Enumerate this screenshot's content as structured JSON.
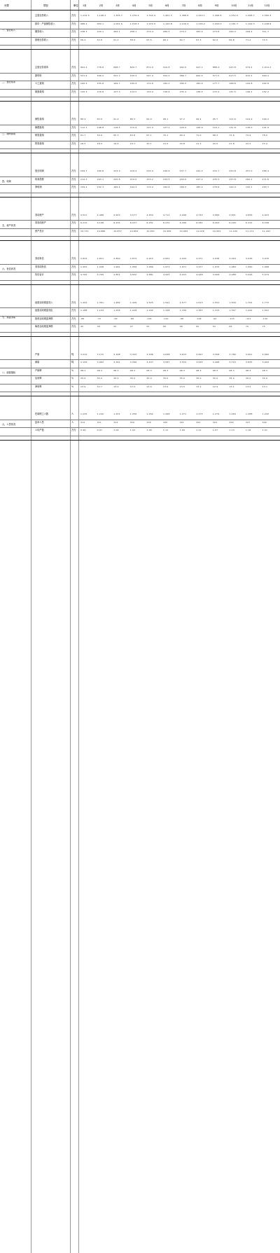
{
  "header": {
    "category": "分类",
    "item": "项目",
    "unit": "单位",
    "periods": [
      "1月",
      "2月",
      "3月",
      "4月",
      "5月",
      "6月",
      "7月",
      "8月",
      "9月",
      "10月",
      "11月",
      "12月"
    ]
  },
  "sections": [
    {
      "title": "一、营业收入",
      "rows": [
        {
          "item": "主营业务收入",
          "unit": "万元",
          "values": [
            "1,234.5",
            "1,198.2",
            "1,305.7",
            "1,276.4",
            "1,342.9",
            "1,401.3",
            "1,388.6",
            "1,420.1",
            "1,366.8",
            "1,452.0",
            "1,498.7",
            "1,560.3"
          ]
        },
        {
          "item": "其中：产品销售收入",
          "unit": "万元",
          "values": [
            "986.2",
            "954.1",
            "1,041.6",
            "1,018.3",
            "1,072.5",
            "1,120.8",
            "1,109.4",
            "1,136.2",
            "1,093.0",
            "1,161.7",
            "1,199.3",
            "1,248.6"
          ]
        },
        {
          "item": "服务收入",
          "unit": "万元",
          "values": [
            "248.3",
            "244.1",
            "264.1",
            "258.1",
            "270.4",
            "280.5",
            "279.2",
            "283.9",
            "273.8",
            "290.3",
            "299.4",
            "311.7"
          ]
        },
        {
          "item": "其他业务收入",
          "unit": "万元",
          "values": [
            "56.4",
            "52.8",
            "61.2",
            "58.9",
            "63.5",
            "66.1",
            "64.7",
            "67.3",
            "62.9",
            "69.8",
            "71.2",
            "74.5"
          ]
        }
      ]
    },
    {
      "title": "二、营业成本",
      "rows": [
        {
          "item": "主营业务成本",
          "unit": "万元",
          "values": [
            "802.4",
            "778.8",
            "848.7",
            "829.7",
            "872.9",
            "910.8",
            "902.6",
            "923.1",
            "888.4",
            "943.8",
            "974.2",
            "1,014.2"
          ]
        },
        {
          "item": "原材料",
          "unit": "万元",
          "values": [
            "521.6",
            "506.2",
            "551.7",
            "539.3",
            "567.4",
            "592.0",
            "586.7",
            "600.0",
            "577.5",
            "613.5",
            "633.2",
            "659.2"
          ]
        },
        {
          "item": "人工费用",
          "unit": "万元",
          "values": [
            "160.5",
            "155.8",
            "169.7",
            "165.9",
            "174.6",
            "182.2",
            "180.5",
            "184.6",
            "177.7",
            "188.8",
            "194.8",
            "202.8"
          ]
        },
        {
          "item": "制造费用",
          "unit": "万元",
          "values": [
            "120.3",
            "116.8",
            "127.3",
            "124.5",
            "130.9",
            "136.6",
            "135.4",
            "138.5",
            "133.2",
            "141.5",
            "146.2",
            "152.2"
          ]
        }
      ]
    },
    {
      "title": "三、期间费用",
      "rows": [
        {
          "item": "销售费用",
          "unit": "万元",
          "values": [
            "86.4",
            "83.9",
            "91.4",
            "89.3",
            "94.0",
            "98.1",
            "97.2",
            "99.4",
            "95.7",
            "101.6",
            "104.9",
            "109.2"
          ]
        },
        {
          "item": "管理费用",
          "unit": "万元",
          "values": [
            "112.1",
            "108.8",
            "118.5",
            "115.9",
            "121.9",
            "127.2",
            "126.0",
            "128.9",
            "124.1",
            "131.8",
            "136.0",
            "141.6"
          ]
        },
        {
          "item": "研发费用",
          "unit": "万元",
          "values": [
            "61.7",
            "59.9",
            "65.3",
            "63.8",
            "67.1",
            "70.1",
            "69.4",
            "71.0",
            "68.3",
            "72.6",
            "74.9",
            "78.0"
          ]
        },
        {
          "item": "财务费用",
          "unit": "万元",
          "values": [
            "18.5",
            "18.0",
            "19.6",
            "19.1",
            "20.1",
            "21.0",
            "20.8",
            "21.3",
            "20.5",
            "21.8",
            "22.5",
            "23.4"
          ]
        }
      ]
    },
    {
      "title": "四、利润",
      "rows": [
        {
          "item": "营业利润",
          "unit": "万元",
          "values": [
            "209.7",
            "200.8",
            "223.0",
            "216.4",
            "230.4",
            "240.6",
            "237.7",
            "244.3",
            "232.7",
            "250.8",
            "257.0",
            "268.4"
          ]
        },
        {
          "item": "利润总额",
          "unit": "万元",
          "values": [
            "212.3",
            "203.1",
            "225.8",
            "219.0",
            "233.2",
            "243.5",
            "240.6",
            "247.2",
            "235.5",
            "253.8",
            "260.1",
            "271.6"
          ]
        },
        {
          "item": "净利润",
          "unit": "万元",
          "values": [
            "159.2",
            "152.3",
            "169.4",
            "164.3",
            "174.9",
            "182.6",
            "180.5",
            "185.4",
            "176.6",
            "190.4",
            "195.1",
            "203.7"
          ]
        }
      ]
    },
    {
      "title": "五、资产状况",
      "rows": [
        {
          "item": "流动资产",
          "unit": "万元",
          "values": [
            "4,521",
            "4,488",
            "4,603",
            "4,577",
            "4,650",
            "4,712",
            "4,698",
            "4,745",
            "4,689",
            "4,801",
            "4,856",
            "4,923"
          ]
        },
        {
          "item": "非流动资产",
          "unit": "万元",
          "values": [
            "6,210",
            "6,198",
            "6,234",
            "6,227",
            "6,251",
            "6,270",
            "6,266",
            "6,281",
            "6,263",
            "6,299",
            "6,315",
            "6,338"
          ]
        },
        {
          "item": "资产总计",
          "unit": "万元",
          "values": [
            "10,731",
            "10,686",
            "10,837",
            "10,804",
            "10,901",
            "10,982",
            "10,964",
            "11,026",
            "10,952",
            "11,100",
            "11,171",
            "11,261"
          ]
        }
      ]
    },
    {
      "title": "六、负债状况",
      "rows": [
        {
          "item": "流动负债",
          "unit": "万元",
          "values": [
            "2,843",
            "2,821",
            "2,890",
            "2,874",
            "2,915",
            "2,952",
            "2,944",
            "2,971",
            "2,938",
            "3,004",
            "3,036",
            "3,076"
          ]
        },
        {
          "item": "非流动负债",
          "unit": "万元",
          "values": [
            "1,952",
            "1,948",
            "1,961",
            "1,958",
            "1,966",
            "1,973",
            "1,971",
            "1,977",
            "1,970",
            "1,984",
            "1,990",
            "1,998"
          ]
        },
        {
          "item": "负债合计",
          "unit": "万元",
          "values": [
            "4,795",
            "4,769",
            "4,851",
            "4,832",
            "4,881",
            "4,925",
            "4,915",
            "4,948",
            "4,908",
            "4,988",
            "5,026",
            "5,074"
          ]
        }
      ]
    },
    {
      "title": "七、现金流量",
      "rows": [
        {
          "item": "经营活动现金流入",
          "unit": "万元",
          "values": [
            "1,402",
            "1,361",
            "1,482",
            "1,449",
            "1,525",
            "1,591",
            "1,577",
            "1,613",
            "1,552",
            "1,649",
            "1,702",
            "1,772"
          ]
        },
        {
          "item": "经营活动现金流出",
          "unit": "万元",
          "values": [
            "1,188",
            "1,154",
            "1,256",
            "1,228",
            "1,292",
            "1,348",
            "1,336",
            "1,367",
            "1,315",
            "1,397",
            "1,442",
            "1,501"
          ]
        },
        {
          "item": "投资活动现金净额",
          "unit": "万元",
          "values": [
            "-86",
            "-72",
            "-95",
            "-80",
            "-101",
            "-110",
            "-98",
            "-104",
            "-92",
            "-115",
            "-121",
            "-130"
          ]
        },
        {
          "item": "筹资活动现金净额",
          "unit": "万元",
          "values": [
            "45",
            "38",
            "52",
            "47",
            "55",
            "60",
            "58",
            "62",
            "54",
            "66",
            "70",
            "75"
          ]
        }
      ]
    },
    {
      "title": "八、经营指标",
      "rows": [
        {
          "item": "产量",
          "unit": "吨",
          "values": [
            "3,210",
            "3,115",
            "3,398",
            "3,322",
            "3,496",
            "3,648",
            "3,615",
            "3,697",
            "3,558",
            "3,780",
            "3,901",
            "4,062"
          ]
        },
        {
          "item": "销量",
          "unit": "吨",
          "values": [
            "3,156",
            "3,062",
            "3,341",
            "3,266",
            "3,437",
            "3,587",
            "3,554",
            "3,635",
            "3,498",
            "3,716",
            "3,835",
            "3,993"
          ]
        },
        {
          "item": "产销率",
          "unit": "%",
          "values": [
            "98.3",
            "98.3",
            "98.3",
            "98.3",
            "98.3",
            "98.3",
            "98.3",
            "98.3",
            "98.3",
            "98.3",
            "98.3",
            "98.3"
          ]
        },
        {
          "item": "毛利率",
          "unit": "%",
          "values": [
            "35.0",
            "35.0",
            "35.0",
            "35.0",
            "35.0",
            "35.0",
            "35.0",
            "35.0",
            "35.0",
            "35.0",
            "35.0",
            "35.0"
          ]
        },
        {
          "item": "净利率",
          "unit": "%",
          "values": [
            "12.9",
            "12.7",
            "13.0",
            "12.9",
            "13.0",
            "13.0",
            "13.0",
            "13.1",
            "12.9",
            "13.1",
            "13.0",
            "13.1"
          ]
        }
      ]
    },
    {
      "title": "九、人员情况",
      "rows": [
        {
          "item": "在岗职工人数",
          "unit": "人",
          "values": [
            "1,245",
            "1,240",
            "1,251",
            "1,256",
            "1,262",
            "1,268",
            "1,271",
            "1,275",
            "1,279",
            "1,284",
            "1,288",
            "1,292"
          ]
        },
        {
          "item": "技术人员",
          "unit": "人",
          "values": [
            "312",
            "311",
            "314",
            "316",
            "318",
            "320",
            "321",
            "322",
            "324",
            "326",
            "327",
            "329"
          ]
        },
        {
          "item": "人均产值",
          "unit": "万元",
          "values": [
            "0.99",
            "0.97",
            "1.04",
            "1.02",
            "1.06",
            "1.11",
            "1.09",
            "1.11",
            "1.07",
            "1.13",
            "1.16",
            "1.21"
          ]
        }
      ]
    }
  ]
}
